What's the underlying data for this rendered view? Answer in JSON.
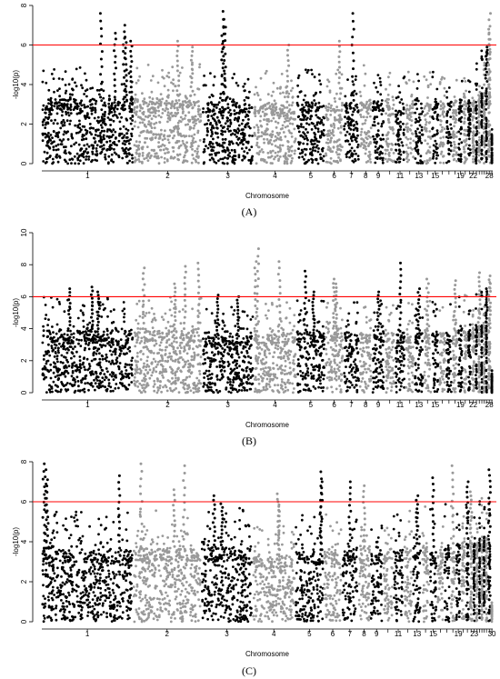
{
  "chart_data": [
    {
      "type": "scatter",
      "panel_label": "(A)",
      "panel_label_bold": "A",
      "xlabel": "Chromosome",
      "ylabel": "-log10(p)",
      "ylim": [
        0,
        8
      ],
      "yticks": [
        0,
        2,
        4,
        6,
        8
      ],
      "threshold": 6,
      "threshold_color": "#ff0000",
      "colors": [
        "#000000",
        "#999999"
      ],
      "chromosome_labels": [
        "1",
        "2",
        "3",
        "4",
        "5",
        "6",
        "7",
        "8",
        "9",
        "11",
        "13",
        "15",
        "19",
        "22",
        "28"
      ],
      "chromosomes": [
        {
          "chr": "1",
          "size": 160,
          "base": 4.2,
          "peaks": [
            [
              0.65,
              7.6
            ],
            [
              0.8,
              6.6
            ],
            [
              0.9,
              7.0
            ],
            [
              0.92,
              6.4
            ],
            [
              0.98,
              6.2
            ]
          ]
        },
        {
          "chr": "2",
          "size": 120,
          "base": 4.3,
          "peaks": [
            [
              0.65,
              6.2
            ],
            [
              0.85,
              5.9
            ]
          ]
        },
        {
          "chr": "3",
          "size": 90,
          "base": 4.0,
          "peaks": [
            [
              0.4,
              7.7
            ],
            [
              0.42,
              7.3
            ],
            [
              0.44,
              6.9
            ]
          ]
        },
        {
          "chr": "4",
          "size": 75,
          "base": 3.9,
          "peaks": [
            [
              0.8,
              6.0
            ]
          ]
        },
        {
          "chr": "5",
          "size": 50,
          "base": 4.0,
          "peaks": []
        },
        {
          "chr": "6",
          "size": 32,
          "base": 4.1,
          "peaks": [
            [
              0.8,
              6.2
            ]
          ]
        },
        {
          "chr": "7",
          "size": 28,
          "base": 4.0,
          "peaks": [
            [
              0.6,
              7.6
            ]
          ]
        },
        {
          "chr": "8",
          "size": 22,
          "base": 4.2,
          "peaks": []
        },
        {
          "chr": "9",
          "size": 22,
          "base": 4.1,
          "peaks": []
        },
        {
          "chr": "10",
          "size": 18,
          "base": 4.2,
          "peaks": []
        },
        {
          "chr": "11",
          "size": 18,
          "base": 3.8,
          "peaks": []
        },
        {
          "chr": "12",
          "size": 16,
          "base": 3.9,
          "peaks": []
        },
        {
          "chr": "13",
          "size": 16,
          "base": 4.0,
          "peaks": []
        },
        {
          "chr": "14",
          "size": 14,
          "base": 4.3,
          "peaks": []
        },
        {
          "chr": "15",
          "size": 13,
          "base": 4.1,
          "peaks": []
        },
        {
          "chr": "16",
          "size": 12,
          "base": 3.9,
          "peaks": []
        },
        {
          "chr": "17",
          "size": 11,
          "base": 4.0,
          "peaks": []
        },
        {
          "chr": "18",
          "size": 10,
          "base": 4.1,
          "peaks": []
        },
        {
          "chr": "19",
          "size": 9,
          "base": 4.2,
          "peaks": []
        },
        {
          "chr": "20",
          "size": 8,
          "base": 4.4,
          "peaks": []
        },
        {
          "chr": "21",
          "size": 7,
          "base": 4.1,
          "peaks": []
        },
        {
          "chr": "22",
          "size": 6,
          "base": 4.0,
          "peaks": []
        },
        {
          "chr": "23",
          "size": 5,
          "base": 4.3,
          "peaks": []
        },
        {
          "chr": "24",
          "size": 5,
          "base": 4.6,
          "peaks": []
        },
        {
          "chr": "25",
          "size": 4,
          "base": 4.8,
          "peaks": []
        },
        {
          "chr": "26",
          "size": 4,
          "base": 4.5,
          "peaks": []
        },
        {
          "chr": "27",
          "size": 4,
          "base": 5.2,
          "peaks": [
            [
              0.5,
              5.9
            ]
          ]
        },
        {
          "chr": "28",
          "size": 6,
          "base": 5.0,
          "peaks": [
            [
              0.6,
              7.6
            ],
            [
              0.5,
              6.8
            ]
          ]
        },
        {
          "chr": "29",
          "size": 3,
          "base": 1.8,
          "peaks": []
        }
      ]
    },
    {
      "type": "scatter",
      "panel_label": "(B)",
      "panel_label_bold": "B",
      "xlabel": "Chromosome",
      "ylabel": "-log10(p)",
      "ylim": [
        0,
        10
      ],
      "yticks": [
        0,
        2,
        4,
        6,
        8,
        10
      ],
      "threshold": 6,
      "threshold_color": "#ff0000",
      "colors": [
        "#000000",
        "#999999"
      ],
      "chromosome_labels": [
        "1",
        "2",
        "3",
        "4",
        "5",
        "6",
        "7",
        "8",
        "9",
        "11",
        "13",
        "15",
        "19",
        "22",
        "28"
      ],
      "chromosomes": [
        {
          "chr": "1",
          "size": 160,
          "base": 5.0,
          "peaks": [
            [
              0.3,
              6.5
            ],
            [
              0.55,
              6.6
            ],
            [
              0.62,
              6.3
            ]
          ]
        },
        {
          "chr": "2",
          "size": 120,
          "base": 5.0,
          "peaks": [
            [
              0.15,
              7.8
            ],
            [
              0.6,
              6.8
            ],
            [
              0.75,
              7.9
            ],
            [
              0.95,
              8.1
            ]
          ]
        },
        {
          "chr": "3",
          "size": 90,
          "base": 4.6,
          "peaks": [
            [
              0.3,
              6.1
            ],
            [
              0.7,
              6.0
            ]
          ]
        },
        {
          "chr": "4",
          "size": 75,
          "base": 4.8,
          "peaks": [
            [
              0.05,
              8.2
            ],
            [
              0.1,
              9.0
            ],
            [
              0.6,
              8.2
            ]
          ]
        },
        {
          "chr": "5",
          "size": 50,
          "base": 4.9,
          "peaks": [
            [
              0.3,
              7.6
            ],
            [
              0.6,
              6.3
            ]
          ]
        },
        {
          "chr": "6",
          "size": 32,
          "base": 5.2,
          "peaks": [
            [
              0.5,
              7.1
            ],
            [
              0.6,
              6.8
            ]
          ]
        },
        {
          "chr": "7",
          "size": 28,
          "base": 5.0,
          "peaks": []
        },
        {
          "chr": "8",
          "size": 22,
          "base": 4.8,
          "peaks": []
        },
        {
          "chr": "9",
          "size": 22,
          "base": 4.9,
          "peaks": [
            [
              0.5,
              6.3
            ]
          ]
        },
        {
          "chr": "10",
          "size": 18,
          "base": 4.9,
          "peaks": []
        },
        {
          "chr": "11",
          "size": 18,
          "base": 4.8,
          "peaks": [
            [
              0.5,
              8.1
            ]
          ]
        },
        {
          "chr": "12",
          "size": 16,
          "base": 4.8,
          "peaks": []
        },
        {
          "chr": "13",
          "size": 16,
          "base": 5.0,
          "peaks": [
            [
              0.5,
              6.5
            ]
          ]
        },
        {
          "chr": "14",
          "size": 14,
          "base": 5.0,
          "peaks": [
            [
              0.5,
              7.1
            ]
          ]
        },
        {
          "chr": "15",
          "size": 13,
          "base": 4.9,
          "peaks": []
        },
        {
          "chr": "16",
          "size": 12,
          "base": 4.8,
          "peaks": []
        },
        {
          "chr": "17",
          "size": 11,
          "base": 4.9,
          "peaks": []
        },
        {
          "chr": "18",
          "size": 10,
          "base": 5.0,
          "peaks": [
            [
              0.5,
              7.0
            ]
          ]
        },
        {
          "chr": "19",
          "size": 9,
          "base": 5.0,
          "peaks": []
        },
        {
          "chr": "20",
          "size": 8,
          "base": 5.1,
          "peaks": []
        },
        {
          "chr": "21",
          "size": 7,
          "base": 4.9,
          "peaks": []
        },
        {
          "chr": "22",
          "size": 6,
          "base": 5.2,
          "peaks": []
        },
        {
          "chr": "23",
          "size": 5,
          "base": 5.3,
          "peaks": []
        },
        {
          "chr": "24",
          "size": 5,
          "base": 5.5,
          "peaks": [
            [
              0.5,
              7.5
            ]
          ]
        },
        {
          "chr": "25",
          "size": 4,
          "base": 5.4,
          "peaks": []
        },
        {
          "chr": "26",
          "size": 4,
          "base": 5.6,
          "peaks": []
        },
        {
          "chr": "27",
          "size": 4,
          "base": 5.8,
          "peaks": [
            [
              0.5,
              6.5
            ]
          ]
        },
        {
          "chr": "28",
          "size": 6,
          "base": 5.8,
          "peaks": [
            [
              0.6,
              7.3
            ]
          ]
        },
        {
          "chr": "29",
          "size": 3,
          "base": 1.5,
          "peaks": []
        }
      ]
    },
    {
      "type": "scatter",
      "panel_label": "(C)",
      "panel_label_bold": "C",
      "xlabel": "Chromosome",
      "ylabel": "-log10(p)",
      "ylim": [
        0,
        8
      ],
      "yticks": [
        0,
        2,
        4,
        6,
        8
      ],
      "threshold": 6,
      "threshold_color": "#ff0000",
      "colors": [
        "#000000",
        "#999999"
      ],
      "chromosome_labels": [
        "1",
        "2",
        "3",
        "4",
        "5",
        "6",
        "7",
        "8",
        "9",
        "11",
        "13",
        "15",
        "19",
        "23",
        "30"
      ],
      "chromosomes": [
        {
          "chr": "1",
          "size": 160,
          "base": 4.6,
          "peaks": [
            [
              0.02,
              7.9
            ],
            [
              0.04,
              7.6
            ],
            [
              0.06,
              7.1
            ],
            [
              0.85,
              7.3
            ]
          ]
        },
        {
          "chr": "2",
          "size": 120,
          "base": 4.7,
          "peaks": [
            [
              0.12,
              7.9
            ],
            [
              0.6,
              6.6
            ],
            [
              0.75,
              7.8
            ]
          ]
        },
        {
          "chr": "3",
          "size": 90,
          "base": 4.8,
          "peaks": [
            [
              0.25,
              6.3
            ],
            [
              0.4,
              5.9
            ]
          ]
        },
        {
          "chr": "4",
          "size": 75,
          "base": 4.2,
          "peaks": [
            [
              0.6,
              6.4
            ],
            [
              0.62,
              6.0
            ]
          ]
        },
        {
          "chr": "5",
          "size": 50,
          "base": 4.5,
          "peaks": [
            [
              0.9,
              7.5
            ],
            [
              0.92,
              7.0
            ]
          ]
        },
        {
          "chr": "6",
          "size": 32,
          "base": 4.6,
          "peaks": []
        },
        {
          "chr": "7",
          "size": 28,
          "base": 4.7,
          "peaks": [
            [
              0.5,
              7.0
            ]
          ]
        },
        {
          "chr": "8",
          "size": 22,
          "base": 4.7,
          "peaks": [
            [
              0.5,
              6.8
            ]
          ]
        },
        {
          "chr": "9",
          "size": 22,
          "base": 4.4,
          "peaks": []
        },
        {
          "chr": "10",
          "size": 18,
          "base": 4.8,
          "peaks": []
        },
        {
          "chr": "11",
          "size": 18,
          "base": 4.7,
          "peaks": []
        },
        {
          "chr": "12",
          "size": 16,
          "base": 4.8,
          "peaks": []
        },
        {
          "chr": "13",
          "size": 16,
          "base": 4.9,
          "peaks": [
            [
              0.5,
              6.3
            ]
          ]
        },
        {
          "chr": "14",
          "size": 14,
          "base": 4.8,
          "peaks": []
        },
        {
          "chr": "15",
          "size": 13,
          "base": 4.7,
          "peaks": [
            [
              0.5,
              7.2
            ]
          ]
        },
        {
          "chr": "16",
          "size": 12,
          "base": 4.9,
          "peaks": []
        },
        {
          "chr": "17",
          "size": 11,
          "base": 5.0,
          "peaks": []
        },
        {
          "chr": "18",
          "size": 10,
          "base": 4.9,
          "peaks": [
            [
              0.5,
              7.8
            ]
          ]
        },
        {
          "chr": "19",
          "size": 9,
          "base": 5.0,
          "peaks": []
        },
        {
          "chr": "20",
          "size": 8,
          "base": 5.1,
          "peaks": []
        },
        {
          "chr": "21",
          "size": 7,
          "base": 5.2,
          "peaks": [
            [
              0.5,
              7.0
            ]
          ]
        },
        {
          "chr": "22",
          "size": 6,
          "base": 5.3,
          "peaks": [
            [
              0.5,
              6.5
            ]
          ]
        },
        {
          "chr": "23",
          "size": 5,
          "base": 5.0,
          "peaks": []
        },
        {
          "chr": "24",
          "size": 5,
          "base": 5.2,
          "peaks": []
        },
        {
          "chr": "25",
          "size": 4,
          "base": 5.4,
          "peaks": []
        },
        {
          "chr": "26",
          "size": 4,
          "base": 5.3,
          "peaks": []
        },
        {
          "chr": "27",
          "size": 4,
          "base": 5.5,
          "peaks": []
        },
        {
          "chr": "28",
          "size": 4,
          "base": 5.4,
          "peaks": []
        },
        {
          "chr": "29",
          "size": 6,
          "base": 5.6,
          "peaks": [
            [
              0.6,
              7.6
            ]
          ]
        },
        {
          "chr": "30",
          "size": 3,
          "base": 0.9,
          "peaks": []
        }
      ]
    }
  ]
}
